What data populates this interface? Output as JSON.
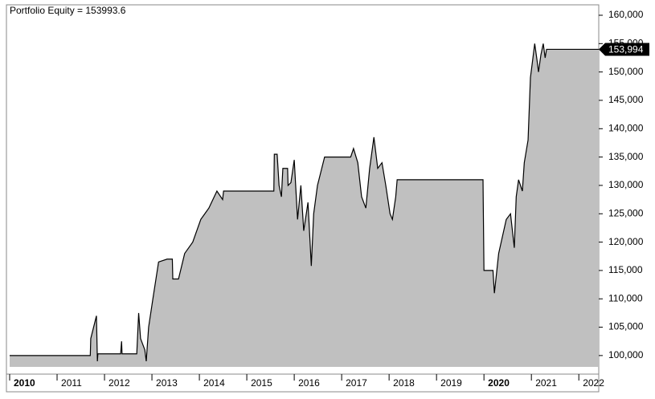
{
  "chart_data": {
    "type": "area",
    "title": "Portfolio Equity = 153993.6",
    "series": [
      {
        "name": "Portfolio Equity",
        "color": "#c0c0c0",
        "line_color": "#000000",
        "x": [
          2010.0,
          2011.7,
          2011.71,
          2011.83,
          2011.85,
          2011.86,
          2012.34,
          2012.36,
          2012.37,
          2012.68,
          2012.72,
          2012.76,
          2012.85,
          2012.88,
          2012.93,
          2013.02,
          2013.14,
          2013.32,
          2013.43,
          2013.44,
          2013.56,
          2013.69,
          2013.86,
          2014.03,
          2014.2,
          2014.37,
          2014.49,
          2014.51,
          2015.57,
          2015.58,
          2015.64,
          2015.68,
          2015.73,
          2015.76,
          2015.86,
          2015.87,
          2015.93,
          2016.0,
          2016.07,
          2016.14,
          2016.2,
          2016.29,
          2016.36,
          2016.41,
          2016.49,
          2016.58,
          2016.64,
          2017.19,
          2017.25,
          2017.34,
          2017.42,
          2017.51,
          2017.59,
          2017.68,
          2017.76,
          2017.85,
          2017.93,
          2018.02,
          2018.07,
          2018.14,
          2018.17,
          2019.98,
          2020.0,
          2020.19,
          2020.22,
          2020.31,
          2020.39,
          2020.47,
          2020.56,
          2020.64,
          2020.68,
          2020.73,
          2020.81,
          2020.85,
          2020.93,
          2020.98,
          2021.07,
          2021.12,
          2021.15,
          2021.2,
          2021.25,
          2021.29,
          2021.32,
          2022.42
        ],
        "values": [
          100000,
          100000,
          103000,
          107000,
          99000,
          100300,
          100300,
          102500,
          100300,
          100300,
          107500,
          103000,
          101000,
          99000,
          105000,
          110000,
          116500,
          117000,
          117000,
          113500,
          113500,
          118000,
          120000,
          124000,
          126000,
          129000,
          127500,
          129000,
          129000,
          135500,
          135500,
          130000,
          128000,
          133000,
          133000,
          130000,
          130500,
          134500,
          124000,
          130000,
          122000,
          127000,
          115800,
          125000,
          130000,
          133000,
          135000,
          135000,
          136500,
          134000,
          128000,
          126000,
          133000,
          138500,
          133000,
          134000,
          130000,
          125000,
          124000,
          128000,
          131000,
          131000,
          115000,
          115000,
          111000,
          118000,
          121000,
          124000,
          125000,
          119000,
          128000,
          131000,
          129000,
          134000,
          138000,
          149000,
          155000,
          152000,
          150000,
          153000,
          155000,
          152500,
          153993.6,
          153993.6
        ]
      }
    ],
    "end_label": {
      "value": 153993.6,
      "label": "153,994"
    },
    "xlim": [
      2010,
      2022.42
    ],
    "xticks": [
      2010,
      2011,
      2012,
      2013,
      2014,
      2015,
      2016,
      2017,
      2018,
      2019,
      2020,
      2021,
      2022
    ],
    "ylim": [
      98000,
      161700
    ],
    "yticks": [
      {
        "value": 100000,
        "label": "100,000"
      },
      {
        "value": 105000,
        "label": "105,000"
      },
      {
        "value": 110000,
        "label": "110,000"
      },
      {
        "value": 115000,
        "label": "115,000"
      },
      {
        "value": 120000,
        "label": "120,000"
      },
      {
        "value": 125000,
        "label": "125,000"
      },
      {
        "value": 130000,
        "label": "130,000"
      },
      {
        "value": 135000,
        "label": "135,000"
      },
      {
        "value": 140000,
        "label": "140,000"
      },
      {
        "value": 145000,
        "label": "145,000"
      },
      {
        "value": 150000,
        "label": "150,000"
      },
      {
        "value": 155000,
        "label": "155,000"
      },
      {
        "value": 160000,
        "label": "160,000"
      }
    ]
  }
}
